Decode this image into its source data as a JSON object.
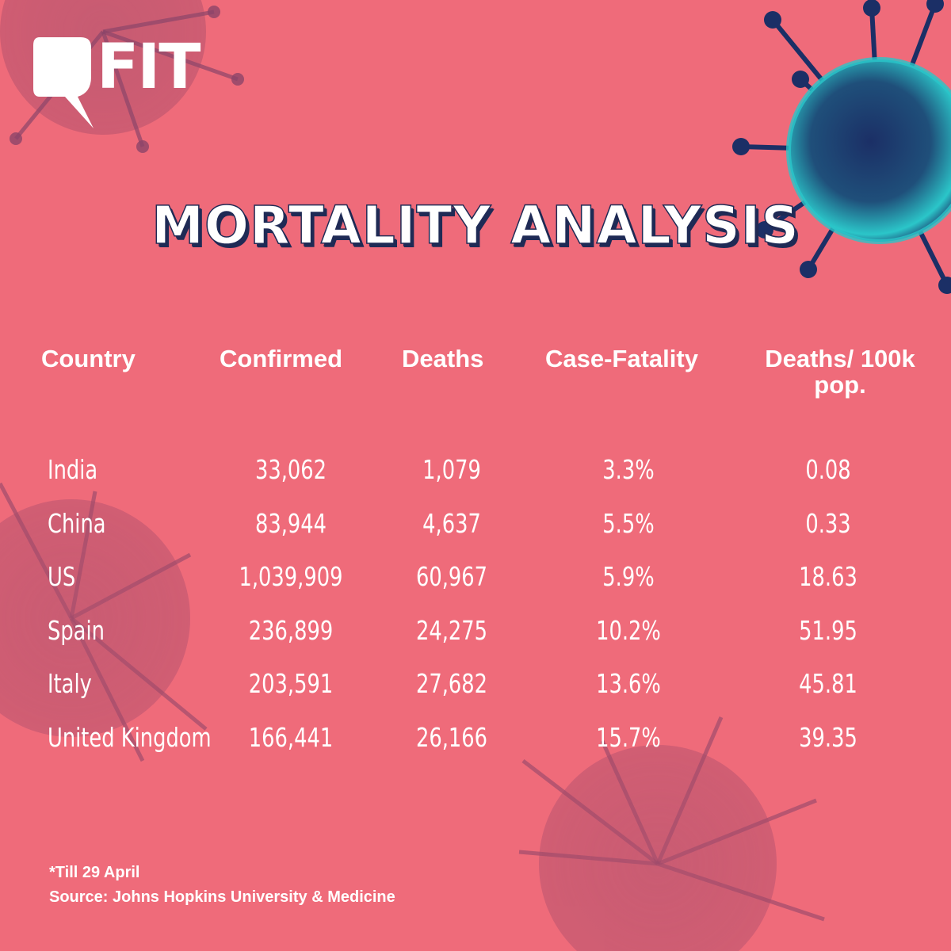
{
  "brand": {
    "logo_text": "FIT"
  },
  "title": "MORTALITY ANALYSIS",
  "colors": {
    "background": "#ef6b7a",
    "title_shadow": "#1f2a55",
    "virus_teal": "#2bc6c9",
    "virus_navy": "#1b2f66"
  },
  "icons": [
    "fit-logo-icon",
    "virus-icon"
  ],
  "chart_data": {
    "type": "table",
    "title": "MORTALITY ANALYSIS",
    "columns": [
      "Country",
      "Confirmed",
      "Deaths",
      "Case-Fatality",
      "Deaths/ 100k pop."
    ],
    "rows": [
      [
        "India",
        "33,062",
        "1,079",
        "3.3%",
        "0.08"
      ],
      [
        "China",
        "83,944",
        "4,637",
        "5.5%",
        "0.33"
      ],
      [
        "US",
        "1,039,909",
        "60,967",
        "5.9%",
        "18.63"
      ],
      [
        "Spain",
        "236,899",
        "24,275",
        "10.2%",
        "51.95"
      ],
      [
        "Italy",
        "203,591",
        "27,682",
        "13.6%",
        "45.81"
      ],
      [
        "United Kingdom",
        "166,441",
        "26,166",
        "15.7%",
        "39.35"
      ]
    ]
  },
  "footnotes": {
    "date_note": "*Till 29 April",
    "source": "Source: Johns Hopkins University & Medicine"
  }
}
